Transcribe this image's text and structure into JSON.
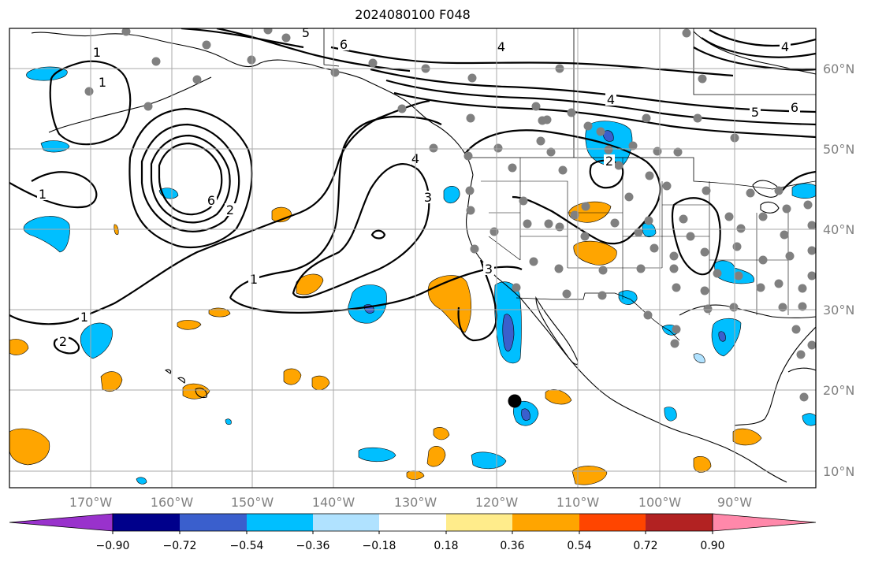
{
  "title": "2024080100 F048",
  "lon_labels": [
    "170°W",
    "160°W",
    "150°W",
    "140°W",
    "130°W",
    "120°W",
    "110°W",
    "100°W",
    "90°W"
  ],
  "lat_labels": [
    "60°N",
    "50°N",
    "40°N",
    "30°N",
    "20°N",
    "10°N"
  ],
  "contour_labels": [
    "1",
    "1",
    "1",
    "1",
    "1",
    "2",
    "2",
    "2",
    "3",
    "3",
    "4",
    "4",
    "4",
    "4",
    "5",
    "5",
    "6",
    "6",
    "6"
  ],
  "colorbar": {
    "ticks": [
      "−0.90",
      "−0.72",
      "−0.54",
      "−0.36",
      "−0.18",
      "0.18",
      "0.36",
      "0.54",
      "0.72",
      "0.90"
    ],
    "colors": [
      "#9932cc",
      "#00008b",
      "#3a5fcd",
      "#00bfff",
      "#b0e2ff",
      "#ffffff",
      "#ffec8b",
      "#ffa500",
      "#ff4500",
      "#b22222",
      "#ff88aa"
    ]
  },
  "fill_colors": {
    "neg_light": "#00bfff",
    "neg_mid": "#3a5fcd",
    "pos_light": "#ffa500"
  }
}
